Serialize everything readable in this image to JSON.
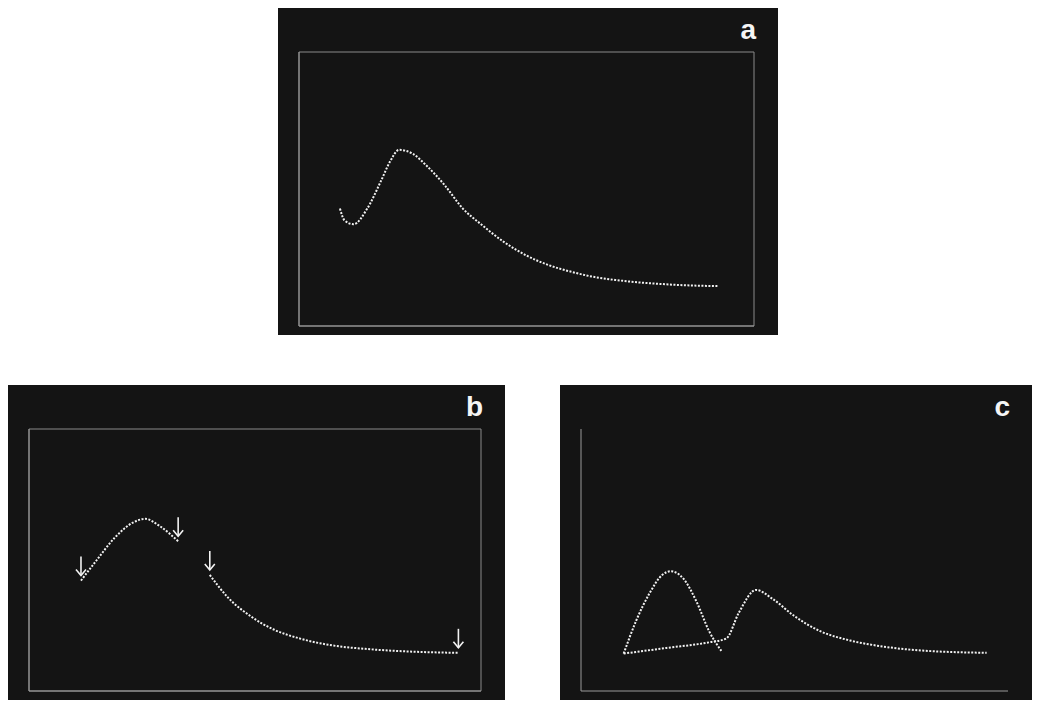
{
  "chart_data": [
    {
      "type": "line",
      "title": "a",
      "grid": true,
      "tick_labels": false,
      "xlim": [
        -1,
        9
      ],
      "xticks": [
        -1,
        0,
        1,
        2,
        3,
        4,
        5,
        6,
        7,
        8,
        9
      ],
      "ylim": [
        -1,
        6
      ],
      "yticks": [
        -1,
        0,
        1,
        2,
        3,
        4,
        5,
        6
      ],
      "series": [
        {
          "color": "#f2f2f2",
          "line_style": "dotted",
          "x": [
            -0.1,
            0.0,
            0.2,
            0.5,
            0.8,
            1.0,
            1.2,
            1.5,
            1.8,
            2.2,
            2.6,
            3.0,
            3.5,
            4.0,
            4.5,
            5.0,
            5.5,
            6.0,
            6.5,
            7.0,
            7.5,
            8.2
          ],
          "values": [
            2.0,
            1.7,
            1.6,
            2.0,
            2.7,
            3.2,
            3.5,
            3.4,
            3.1,
            2.6,
            2.0,
            1.6,
            1.15,
            0.8,
            0.55,
            0.38,
            0.25,
            0.17,
            0.11,
            0.07,
            0.04,
            0.02
          ]
        }
      ]
    },
    {
      "type": "line",
      "title": "b",
      "grid": true,
      "tick_labels": false,
      "xlim": [
        0,
        10
      ],
      "xticks": [
        0,
        1,
        2,
        3,
        4,
        5,
        6,
        7,
        8,
        9,
        10
      ],
      "ylim": [
        -1,
        6
      ],
      "yticks": [
        -1,
        0,
        1,
        2,
        3,
        4,
        5,
        6
      ],
      "series": [
        {
          "color": "#f2f2f2",
          "line_style": "dotted",
          "marker": "arrow",
          "x": [
            1.15,
            1.5,
            1.9,
            2.3,
            2.57,
            2.9,
            3.3,
            3.6,
            4.0,
            4.4,
            4.9,
            5.4,
            6.0,
            6.7,
            7.5,
            8.5,
            9.5
          ],
          "values": [
            1.95,
            2.5,
            3.1,
            3.5,
            3.6,
            3.4,
            3.0,
            null,
            2.1,
            1.5,
            1.0,
            0.65,
            0.4,
            0.22,
            0.12,
            0.05,
            0.02
          ]
        }
      ]
    },
    {
      "type": "line",
      "title": "c",
      "grid": false,
      "tick_labels": false,
      "xlim": [
        -1,
        9
      ],
      "xticks": [
        -1,
        0,
        1,
        2,
        3,
        4,
        5,
        6,
        7,
        8,
        9
      ],
      "ylim": [
        -1,
        6
      ],
      "yticks": [
        -1,
        0,
        1,
        2,
        3,
        4,
        5,
        6
      ],
      "series": [
        {
          "color": "#f2f2f2",
          "line_style": "dotted",
          "x": [
            0.0,
            0.3,
            0.6,
            0.9,
            1.1,
            1.4,
            1.7,
            2.0,
            2.3
          ],
          "values": [
            0.0,
            0.9,
            1.6,
            2.1,
            2.2,
            2.0,
            1.4,
            0.6,
            0.05
          ]
        },
        {
          "color": "#f2f2f2",
          "line_style": "dotted",
          "x": [
            0.0,
            1.0,
            2.0,
            2.4,
            2.7,
            3.1,
            3.5,
            4.0,
            4.6,
            5.3,
            6.0,
            7.0,
            8.5
          ],
          "values": [
            0.0,
            0.15,
            0.3,
            0.4,
            1.1,
            1.7,
            1.45,
            1.0,
            0.6,
            0.35,
            0.2,
            0.08,
            0.02
          ]
        }
      ]
    }
  ]
}
